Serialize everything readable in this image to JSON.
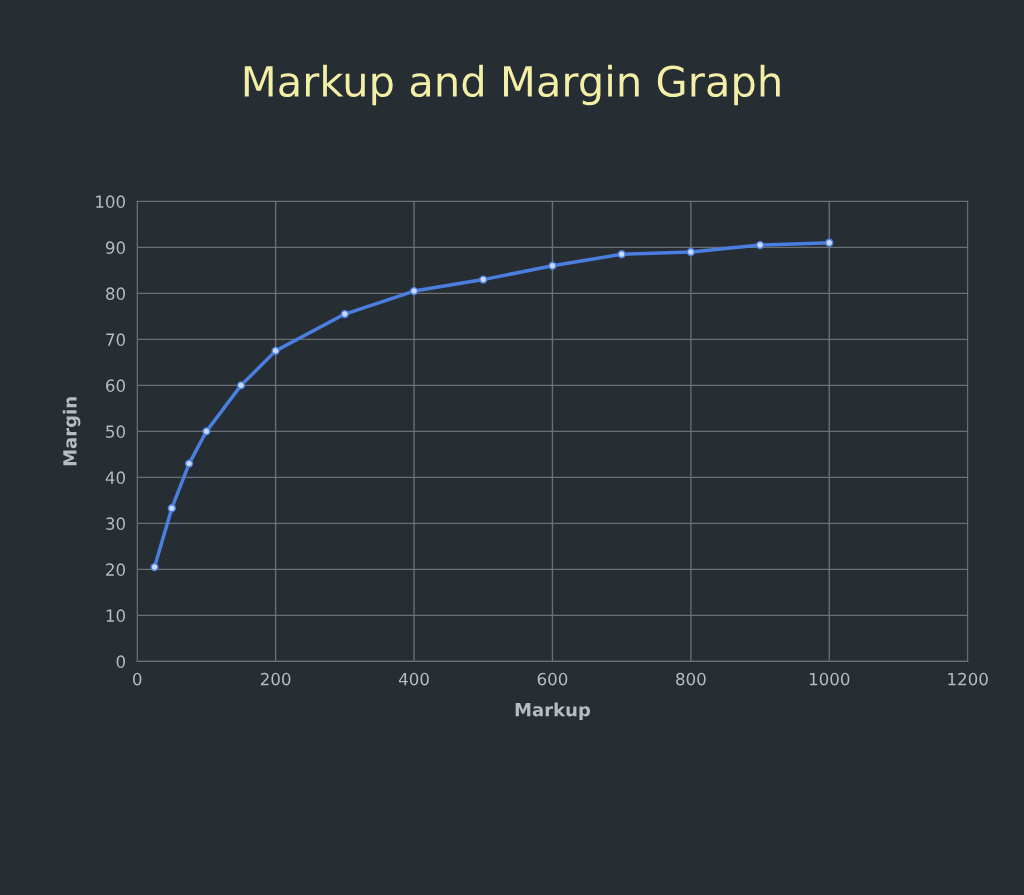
{
  "chart_data": {
    "type": "line",
    "title": "Markup and Margin Graph",
    "xlabel": "Markup",
    "ylabel": "Margin",
    "x": [
      25,
      50,
      75,
      100,
      150,
      200,
      300,
      400,
      500,
      600,
      700,
      800,
      900,
      1000
    ],
    "series": [
      {
        "color": "#4a7fe0",
        "values": [
          20.5,
          33.3,
          43,
          50,
          60,
          67.5,
          75.5,
          80.5,
          83,
          86,
          88.5,
          89,
          90.5,
          91
        ]
      }
    ],
    "xlim": [
      0,
      1200
    ],
    "xticks": [
      0,
      200,
      400,
      600,
      800,
      1000,
      1200
    ],
    "ylim": [
      0,
      100
    ],
    "yticks": [
      0,
      10,
      20,
      30,
      40,
      50,
      60,
      70,
      80,
      90,
      100
    ],
    "grid": true,
    "marker": "circle",
    "line_style": "solid",
    "legend": false
  }
}
